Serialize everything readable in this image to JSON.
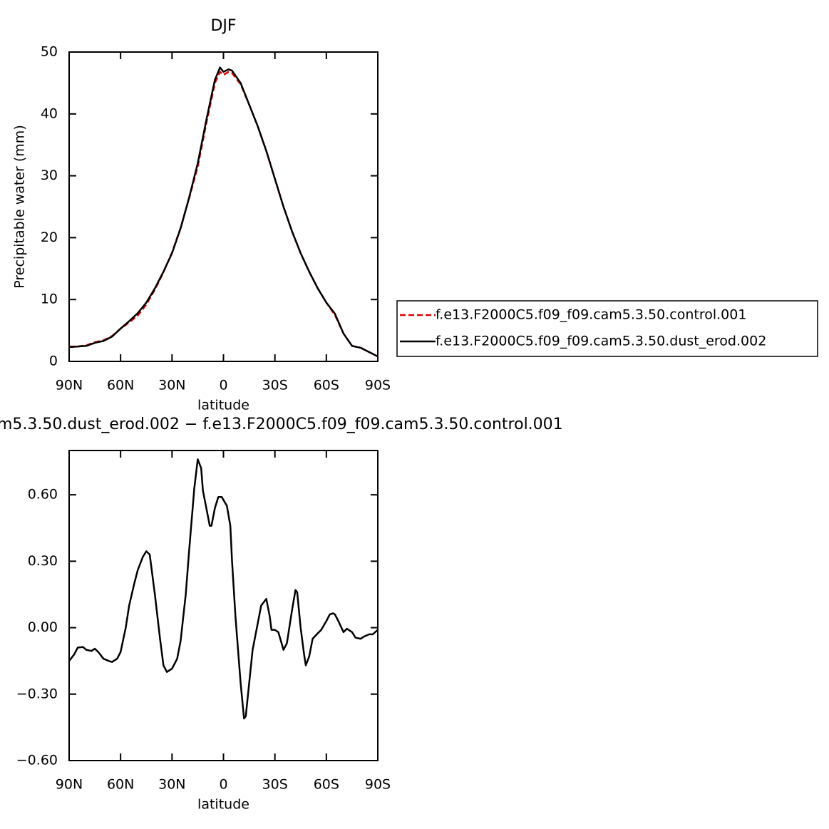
{
  "chart_data": [
    {
      "type": "line",
      "title": "DJF",
      "ylabel": "Precipitable water (mm)",
      "xlabel": "latitude",
      "x": [
        90,
        85,
        80,
        75,
        70,
        65,
        60,
        55,
        50,
        45,
        40,
        35,
        30,
        25,
        20,
        15,
        10,
        5,
        2,
        0,
        -3,
        -5,
        -10,
        -15,
        -20,
        -25,
        -30,
        -35,
        -40,
        -45,
        -50,
        -55,
        -60,
        -65,
        -70,
        -75,
        -80,
        -85,
        -90
      ],
      "xlim": [
        90,
        -90
      ],
      "xticks": [
        {
          "value": 90,
          "label": "90N"
        },
        {
          "value": 60,
          "label": "60N"
        },
        {
          "value": 30,
          "label": "30N"
        },
        0,
        {
          "value": -30,
          "label": "30S"
        },
        {
          "value": -60,
          "label": "60S"
        },
        {
          "value": -90,
          "label": "90S"
        }
      ],
      "ylim": [
        0,
        50
      ],
      "yticks": [
        0,
        10,
        20,
        30,
        40,
        50
      ],
      "legend": "right",
      "series": [
        {
          "name": "f.e13.F2000C5.f09_f09.cam5.3.50.control.001",
          "color": "#e00000",
          "dash": true,
          "values": [
            2.4,
            2.4,
            2.6,
            3.1,
            3.4,
            4.1,
            5.3,
            6.3,
            7.4,
            9.2,
            11.6,
            14.4,
            17.6,
            21.6,
            26.4,
            31.5,
            38.5,
            45.0,
            46.8,
            46.3,
            46.8,
            46.6,
            44.8,
            41.5,
            38.0,
            34.0,
            29.5,
            25.0,
            21.0,
            17.5,
            14.5,
            11.8,
            9.5,
            7.5,
            4.5,
            2.5,
            2.2,
            1.5,
            0.8
          ]
        },
        {
          "name": "f.e13.F2000C5.f09_f09.cam5.3.50.dust_erod.002",
          "color": "#000000",
          "dash": false,
          "values": [
            2.3,
            2.4,
            2.5,
            3.0,
            3.3,
            4.0,
            5.3,
            6.5,
            7.8,
            9.5,
            11.8,
            14.5,
            17.5,
            21.5,
            26.5,
            32.0,
            39.0,
            45.5,
            47.5,
            46.8,
            47.2,
            47.0,
            45.0,
            41.5,
            38.0,
            34.0,
            29.5,
            25.0,
            21.0,
            17.5,
            14.5,
            11.8,
            9.5,
            7.7,
            4.5,
            2.5,
            2.2,
            1.5,
            0.8
          ]
        }
      ]
    },
    {
      "type": "line",
      "title": "m5.3.50.dust_erod.002 − f.e13.F2000C5.f09_f09.cam5.3.50.control.001",
      "xlabel": "latitude",
      "x": [
        90,
        87,
        85,
        82,
        80,
        77,
        75,
        73,
        70,
        67,
        65,
        62,
        60,
        57,
        55,
        52,
        50,
        47,
        45,
        43,
        40,
        37,
        35,
        33,
        30,
        27,
        25,
        22,
        20,
        17,
        15,
        13,
        12,
        10,
        8,
        7,
        5,
        3,
        1,
        -2,
        -4,
        -5,
        -7,
        -10,
        -12,
        -13,
        -15,
        -17,
        -20,
        -22,
        -25,
        -27,
        -28,
        -30,
        -32,
        -35,
        -37,
        -40,
        -42,
        -43,
        -45,
        -47,
        -48,
        -50,
        -52,
        -55,
        -57,
        -60,
        -62,
        -64,
        -65,
        -67,
        -70,
        -72,
        -75,
        -77,
        -80,
        -82,
        -85,
        -87,
        -90
      ],
      "xlim": [
        90,
        -90
      ],
      "xticks": [
        {
          "value": 90,
          "label": "90N"
        },
        {
          "value": 60,
          "label": "60N"
        },
        {
          "value": 30,
          "label": "30N"
        },
        0,
        {
          "value": -30,
          "label": "30S"
        },
        {
          "value": -60,
          "label": "60S"
        },
        {
          "value": -90,
          "label": "90S"
        }
      ],
      "ylim": [
        -0.6,
        0.8
      ],
      "yticks": [
        {
          "value": -0.6,
          "label": "−0.60"
        },
        {
          "value": -0.3,
          "label": "−0.30"
        },
        {
          "value": 0,
          "label": "0.00"
        },
        {
          "value": 0.3,
          "label": "0.30"
        },
        {
          "value": 0.6,
          "label": "0.60"
        }
      ],
      "color": "#000000",
      "values": [
        -0.15,
        -0.12,
        -0.09,
        -0.087,
        -0.1,
        -0.105,
        -0.095,
        -0.11,
        -0.14,
        -0.15,
        -0.155,
        -0.14,
        -0.11,
        0.0,
        0.1,
        0.2,
        0.26,
        0.32,
        0.345,
        0.33,
        0.15,
        -0.05,
        -0.17,
        -0.2,
        -0.185,
        -0.14,
        -0.06,
        0.15,
        0.35,
        0.63,
        0.76,
        0.72,
        0.62,
        0.54,
        0.46,
        0.46,
        0.54,
        0.59,
        0.59,
        0.55,
        0.46,
        0.3,
        0.05,
        -0.25,
        -0.41,
        -0.4,
        -0.25,
        -0.1,
        0.02,
        0.1,
        0.13,
        0.05,
        -0.01,
        -0.01,
        -0.02,
        -0.1,
        -0.07,
        0.08,
        0.17,
        0.16,
        0.0,
        -0.12,
        -0.17,
        -0.13,
        -0.05,
        -0.025,
        -0.01,
        0.03,
        0.06,
        0.065,
        0.06,
        0.03,
        -0.02,
        -0.005,
        -0.02,
        -0.045,
        -0.05,
        -0.04,
        -0.03,
        -0.03,
        -0.01
      ]
    }
  ]
}
